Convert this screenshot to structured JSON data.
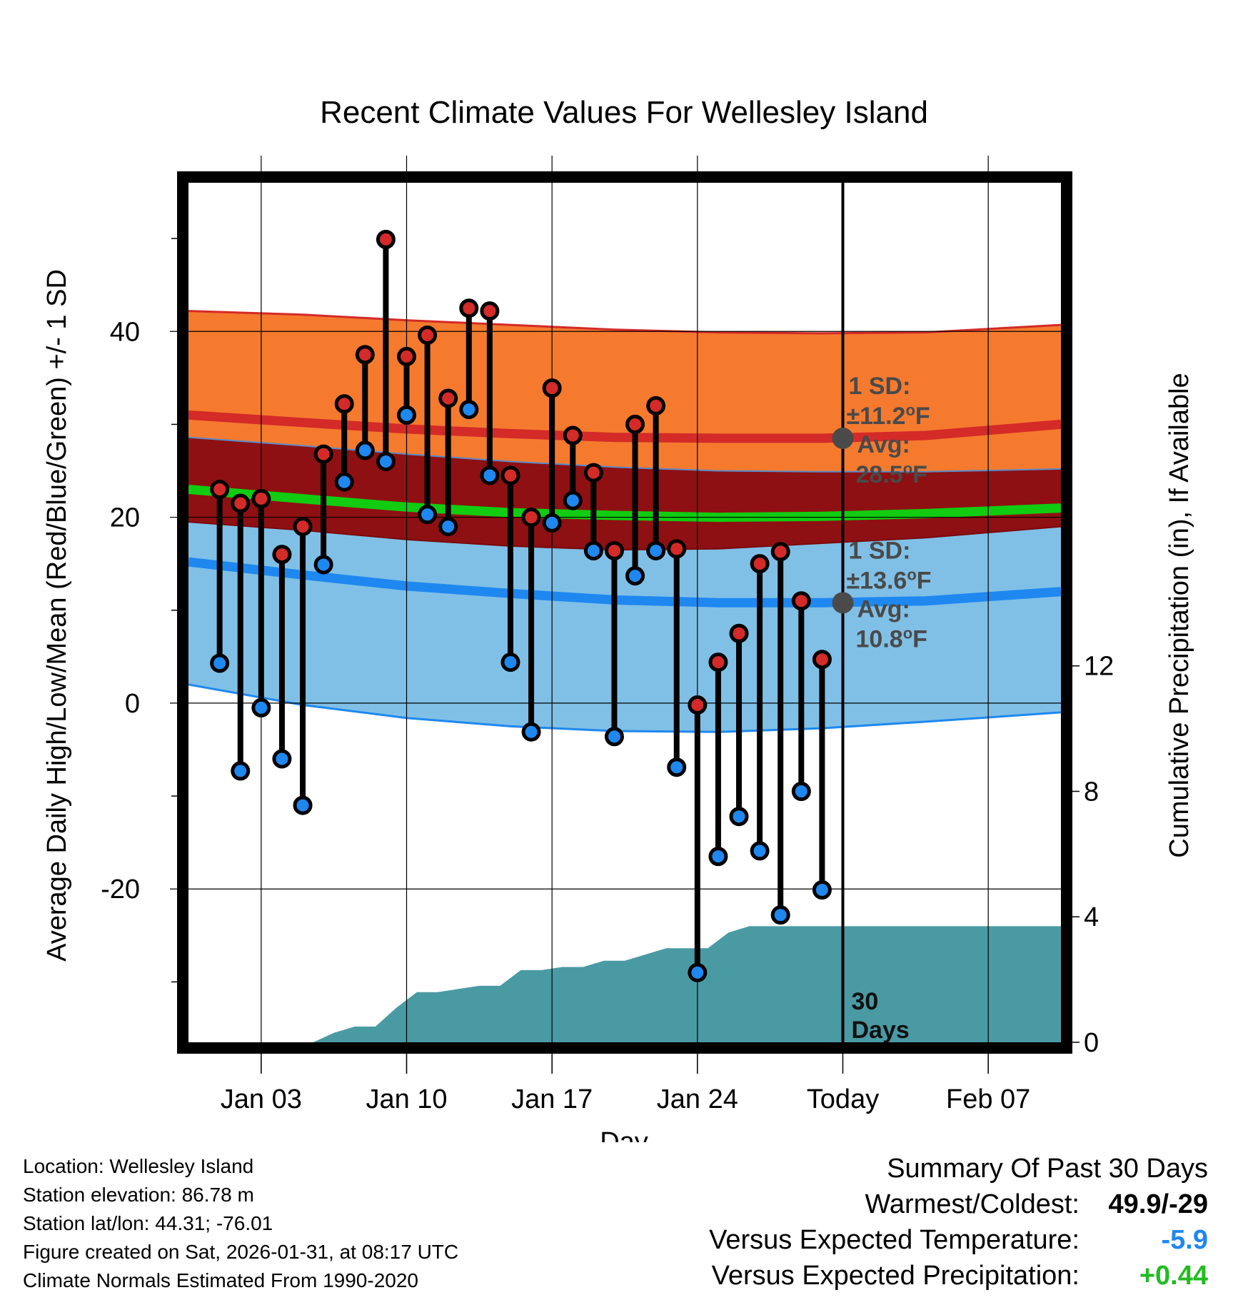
{
  "chart_data": {
    "type": "line",
    "title": "Recent Climate Values For Wellesley Island",
    "xlabel": "Day",
    "ylabel": "Average Daily High/Low/Mean (Red/Blue/Green) +/- 1 SD",
    "y2label": "Cumulative Precipitation (in), If Available",
    "xlim": [
      -0.5,
      41.5
    ],
    "ylim": [
      -36.5,
      56
    ],
    "y2lim": [
      0,
      27.4
    ],
    "yticks": [
      -20,
      0,
      20,
      40
    ],
    "yticks_minor": [
      -30,
      -10,
      10,
      30,
      50
    ],
    "y2ticks": [
      0,
      4,
      8,
      12
    ],
    "xticks": [
      {
        "x": 3,
        "label": "Jan 03"
      },
      {
        "x": 10,
        "label": "Jan 10"
      },
      {
        "x": 17,
        "label": "Jan 17"
      },
      {
        "x": 24,
        "label": "Jan 24"
      },
      {
        "x": 31,
        "label": "Today"
      },
      {
        "x": 38,
        "label": "Feb 07"
      }
    ],
    "today_x": 31,
    "today_label_line1": "30",
    "today_label_line2": "Days",
    "normals": {
      "x": [
        -0.5,
        5,
        10,
        15,
        20,
        25,
        30,
        35,
        41.5
      ],
      "high_plus_sd": [
        42.2,
        41.8,
        41.2,
        40.7,
        40.2,
        39.9,
        39.8,
        39.9,
        40.7
      ],
      "high_avg": [
        31.0,
        30.2,
        29.5,
        29.0,
        28.6,
        28.5,
        28.5,
        28.8,
        30.0
      ],
      "high_minus_sd": [
        28.6,
        27.7,
        26.8,
        26.0,
        25.4,
        25.0,
        24.9,
        24.9,
        25.2
      ],
      "mean_avg": [
        23.0,
        22.0,
        21.1,
        20.5,
        20.2,
        20.0,
        20.1,
        20.4,
        21.0
      ],
      "low_plus_sd": [
        19.5,
        18.6,
        17.6,
        16.9,
        16.5,
        16.6,
        17.2,
        17.8,
        19.0
      ],
      "low_avg": [
        15.2,
        13.8,
        12.6,
        11.8,
        11.1,
        10.8,
        10.8,
        11.0,
        12.0
      ],
      "low_minus_sd": [
        2.0,
        -0.2,
        -1.6,
        -2.5,
        -3.0,
        -3.1,
        -2.7,
        -2.0,
        -1.0
      ]
    },
    "colors": {
      "high_band": "#f57a2e",
      "high_avg_line": "#d42a28",
      "mid_band": "#8e1012",
      "mean_line": "#11cc11",
      "low_band": "#80c0e6",
      "low_avg_line": "#1e88f0",
      "precip": "#4a9aa4",
      "high_dot": "#d42a28",
      "low_dot": "#1e88f0",
      "annotation_dot": "#4a4a4a"
    },
    "days": [
      {
        "x": 1,
        "high": 23.0,
        "low": 4.3
      },
      {
        "x": 2,
        "high": 21.5,
        "low": -7.3
      },
      {
        "x": 3,
        "high": 22.0,
        "low": -0.5
      },
      {
        "x": 4,
        "high": 16.0,
        "low": -6.0
      },
      {
        "x": 5,
        "high": 19.0,
        "low": -11.0
      },
      {
        "x": 6,
        "high": 26.8,
        "low": 14.9
      },
      {
        "x": 7,
        "high": 32.2,
        "low": 23.8
      },
      {
        "x": 8,
        "high": 37.5,
        "low": 27.2
      },
      {
        "x": 9,
        "high": 49.9,
        "low": 26.0
      },
      {
        "x": 10,
        "high": 37.3,
        "low": 31.0
      },
      {
        "x": 11,
        "high": 39.6,
        "low": 20.3
      },
      {
        "x": 12,
        "high": 32.8,
        "low": 19.0
      },
      {
        "x": 13,
        "high": 42.5,
        "low": 31.6
      },
      {
        "x": 14,
        "high": 42.2,
        "low": 24.5
      },
      {
        "x": 15,
        "high": 24.5,
        "low": 4.4
      },
      {
        "x": 16,
        "high": 20.0,
        "low": -3.1
      },
      {
        "x": 17,
        "high": 33.9,
        "low": 19.4
      },
      {
        "x": 18,
        "high": 28.8,
        "low": 21.8
      },
      {
        "x": 19,
        "high": 24.8,
        "low": 16.4
      },
      {
        "x": 20,
        "high": 16.4,
        "low": -3.6
      },
      {
        "x": 21,
        "high": 30.0,
        "low": 13.7
      },
      {
        "x": 22,
        "high": 32.0,
        "low": 16.4
      },
      {
        "x": 23,
        "high": 16.6,
        "low": -6.9
      },
      {
        "x": 24,
        "high": -0.2,
        "low": -29.0
      },
      {
        "x": 25,
        "high": 4.4,
        "low": -16.5
      },
      {
        "x": 26,
        "high": 7.5,
        "low": -12.2
      },
      {
        "x": 27,
        "high": 15.0,
        "low": -15.9
      },
      {
        "x": 28,
        "high": 16.3,
        "low": -22.8
      },
      {
        "x": 29,
        "high": 11.0,
        "low": -9.5
      },
      {
        "x": 30,
        "high": 4.7,
        "low": -20.1
      }
    ],
    "precip": {
      "x": [
        -0.5,
        1.5,
        2.5,
        3.5,
        4.5,
        5.5,
        6.5,
        7.5,
        8.5,
        9.5,
        10.5,
        11.5,
        12.5,
        13.5,
        14.5,
        15.5,
        16.5,
        17.5,
        18.5,
        19.5,
        20.5,
        21.5,
        22.5,
        23.5,
        24.5,
        25.5,
        26.5,
        27.5,
        28.5,
        29.5,
        30.5,
        41.5
      ],
      "y": [
        0,
        0,
        0,
        0,
        0,
        0.0,
        0.3,
        0.5,
        0.5,
        1.1,
        1.6,
        1.6,
        1.7,
        1.8,
        1.8,
        2.3,
        2.3,
        2.4,
        2.4,
        2.6,
        2.6,
        2.8,
        3.0,
        3.0,
        3.0,
        3.5,
        3.7,
        3.7,
        3.7,
        3.7,
        3.7,
        3.7
      ]
    },
    "annotations": {
      "high": {
        "sd_label": "1 SD:",
        "sd_value": "±11.2",
        "sd_unit": "F",
        "avg_label": "Avg:",
        "avg_value": "28.5",
        "avg_unit": "F",
        "y": 28.5
      },
      "low": {
        "sd_label": "1 SD:",
        "sd_value": "±13.6",
        "sd_unit": "F",
        "avg_label": "Avg:",
        "avg_value": "10.8",
        "avg_unit": "F",
        "y": 10.8
      },
      "degree_symbol": "o"
    }
  },
  "info": {
    "location": "Location: Wellesley Island",
    "elevation": "Station elevation: 86.78 m",
    "latlon": "Station lat/lon: 44.31; -76.01",
    "created": "Figure created on Sat, 2026-01-31, at 08:17 UTC",
    "normals": "Climate Normals Estimated From 1990-2020"
  },
  "summary": {
    "title": "Summary Of Past 30 Days",
    "warmest_coldest_label": "Warmest/Coldest:",
    "warmest_coldest_value": "49.9/-29",
    "temp_label": "Versus Expected Temperature:",
    "temp_value": "-5.9",
    "temp_color": "#1e88f0",
    "precip_label": "Versus Expected Precipitation:",
    "precip_value": "+0.44",
    "precip_color": "#22bb22"
  }
}
